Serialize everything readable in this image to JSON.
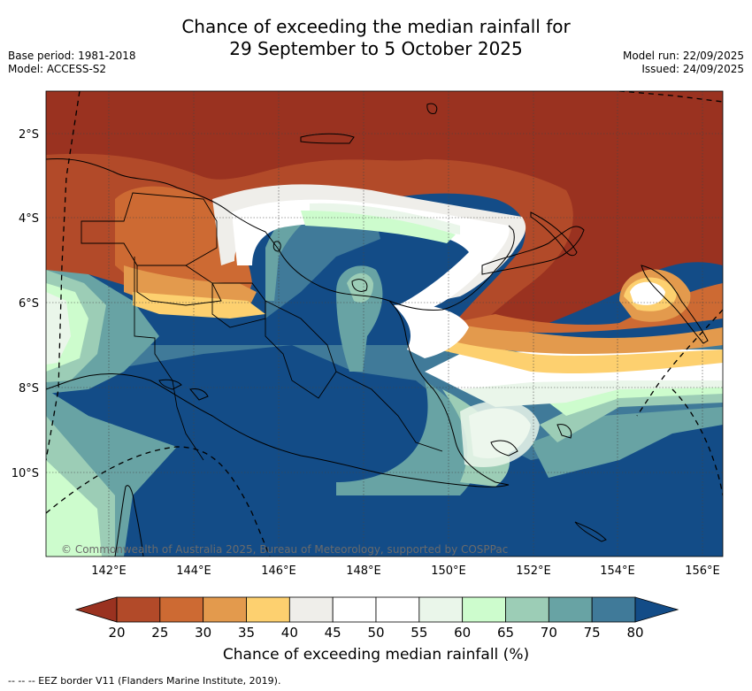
{
  "header": {
    "title_line1": "Chance of exceeding the median rainfall for",
    "title_line2": "29 September to 5 October 2025",
    "base_period": "Base period: 1981-2018",
    "model": "Model: ACCESS-S2",
    "model_run": "Model run: 22/09/2025",
    "issued": "Issued: 24/09/2025"
  },
  "map": {
    "lat_labels": [
      "2°S",
      "4°S",
      "6°S",
      "8°S",
      "10°S"
    ],
    "lon_labels": [
      "142°E",
      "144°E",
      "146°E",
      "148°E",
      "150°E",
      "152°E",
      "154°E",
      "156°E"
    ],
    "copyright": "© Commonwealth of Australia 2025, Bureau of Meteorology, supported by COSPPac"
  },
  "colorbar": {
    "title": "Chance of exceeding median rainfall (%)",
    "ticks": [
      "20",
      "25",
      "30",
      "35",
      "40",
      "45",
      "50",
      "55",
      "60",
      "65",
      "70",
      "75",
      "80"
    ],
    "colors": [
      "#9a3220",
      "#b24a29",
      "#cd6a33",
      "#e39a4d",
      "#fdd06f",
      "#efeeea",
      "#ffffff",
      "#ffffff",
      "#eaf6ea",
      "#cdfccd",
      "#9ccdb6",
      "#68a3a4",
      "#407a99",
      "#134c87"
    ]
  },
  "footer": {
    "legend_text": "-- -- -- EEZ border V11 (Flanders Marine Institute, 2019)."
  }
}
